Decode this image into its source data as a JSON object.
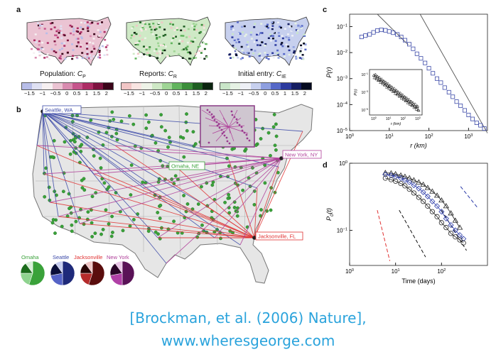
{
  "panels": {
    "a": "a",
    "b": "b",
    "c": "c",
    "d": "d"
  },
  "panel_a": {
    "maps": [
      {
        "title": "Population: ",
        "sym": "C",
        "sub": "P",
        "colors": [
          "#b7bde8",
          "#dfe1f3",
          "#f6f0f1",
          "#ebc4d3",
          "#d98cb0",
          "#c6558c",
          "#ad2d65",
          "#7e1340",
          "#3a0519"
        ]
      },
      {
        "title": "Reports: ",
        "sym": "C",
        "sub": "R",
        "colors": [
          "#f1c6c6",
          "#f9e5e2",
          "#eef3e8",
          "#cfe9c6",
          "#9fd595",
          "#62b45e",
          "#3b8e3a",
          "#1e5e22",
          "#0b2410"
        ]
      },
      {
        "title": "Initial entry: ",
        "sym": "C",
        "sub": "IE",
        "colors": [
          "#c9e6c8",
          "#e6f2e4",
          "#eef0f6",
          "#c7d0ee",
          "#8e9fe0",
          "#5568c8",
          "#2c3a9e",
          "#141d61",
          "#050a20"
        ]
      }
    ],
    "ticks": [
      "−1.5",
      "−1",
      "−0.5",
      "0",
      "0.5",
      "1",
      "1.5",
      "2"
    ]
  },
  "panel_b": {
    "cities": {
      "seattle": "Seattle, WA",
      "newyork": "New York, NY",
      "omaha": "Omaha, NE",
      "jacksonville": "Jacksonville, FL"
    },
    "pie_labels": [
      "Omaha",
      "Seattle",
      "Jacksonville",
      "New York"
    ],
    "colors": {
      "seattle": "#3b49a8",
      "newyork": "#b0409a",
      "omaha": "#3aa23a",
      "jacksonville": "#e03030"
    }
  },
  "chart_data": [
    {
      "panel": "c",
      "type": "scatter",
      "xlabel": "r (km)",
      "ylabel": "P(r)",
      "xscale": "log",
      "yscale": "log",
      "xlim": [
        1,
        3000
      ],
      "ylim": [
        1e-05,
        0.3
      ],
      "xticks": [
        "10^0",
        "10^1",
        "10^2",
        "10^3"
      ],
      "yticks": [
        "10^-1",
        "10^-2",
        "10^-3",
        "10^-4",
        "10^-5"
      ],
      "series": [
        {
          "marker": "square",
          "x": [
            2.0,
            2.5,
            3.2,
            4.0,
            5.0,
            6.3,
            8.0,
            10,
            12.5,
            16,
            20,
            25,
            32,
            40,
            50,
            63,
            80,
            100,
            126,
            160,
            200,
            250,
            320,
            400,
            500,
            630,
            800,
            1000,
            1260,
            1600,
            2000,
            2500
          ],
          "y": [
            0.04,
            0.045,
            0.05,
            0.06,
            0.07,
            0.075,
            0.072,
            0.065,
            0.058,
            0.05,
            0.04,
            0.03,
            0.021,
            0.014,
            0.009,
            0.006,
            0.004,
            0.0025,
            0.0016,
            0.001,
            0.0007,
            0.00045,
            0.0003,
            0.0002,
            0.00013,
            9e-05,
            6e-05,
            4e-05,
            2.8e-05,
            2e-05,
            1.6e-05,
            1.2e-05
          ]
        }
      ],
      "inset": {
        "xlabel": "r (km)",
        "ylabel": "P(r)",
        "xticks": [
          "10^0",
          "10^1",
          "10^2",
          "10^3"
        ],
        "yticks": [
          "10^-1",
          "10^-3",
          "10^-5"
        ]
      }
    },
    {
      "panel": "d",
      "type": "line",
      "xlabel": "Time (days)",
      "ylabel": "P0(t)",
      "xscale": "log",
      "yscale": "log",
      "xlim": [
        1,
        1000
      ],
      "ylim": [
        0.03,
        1
      ],
      "xticks": [
        "10^0",
        "10^1",
        "10^2"
      ],
      "yticks": [
        "10^0",
        "10^-1"
      ],
      "series": [
        {
          "marker": "triangle",
          "x": [
            6,
            8,
            10,
            13,
            16,
            20,
            25,
            32,
            40,
            50,
            63,
            80,
            100,
            126,
            160,
            200,
            250
          ],
          "y": [
            0.72,
            0.71,
            0.69,
            0.66,
            0.63,
            0.6,
            0.56,
            0.52,
            0.48,
            0.43,
            0.38,
            0.33,
            0.28,
            0.23,
            0.18,
            0.14,
            0.11
          ]
        },
        {
          "marker": "diamond",
          "x": [
            6,
            8,
            10,
            13,
            16,
            20,
            25,
            32,
            40,
            50,
            63,
            80,
            100,
            126,
            160,
            200,
            250,
            300
          ],
          "y": [
            0.68,
            0.66,
            0.63,
            0.6,
            0.56,
            0.52,
            0.47,
            0.42,
            0.37,
            0.32,
            0.27,
            0.23,
            0.19,
            0.15,
            0.12,
            0.1,
            0.085,
            0.075
          ]
        },
        {
          "marker": "circle",
          "x": [
            6,
            8,
            10,
            13,
            16,
            20,
            25,
            32,
            40,
            50,
            63,
            80,
            100,
            126,
            160,
            200,
            250,
            300
          ],
          "y": [
            0.6,
            0.57,
            0.54,
            0.5,
            0.46,
            0.41,
            0.36,
            0.31,
            0.27,
            0.23,
            0.19,
            0.16,
            0.13,
            0.11,
            0.09,
            0.08,
            0.072,
            0.065
          ]
        }
      ]
    }
  ],
  "citation": {
    "line1": "[Brockman, et al. (2006) Nature],",
    "line2": "www.wheresgeorge.com"
  }
}
